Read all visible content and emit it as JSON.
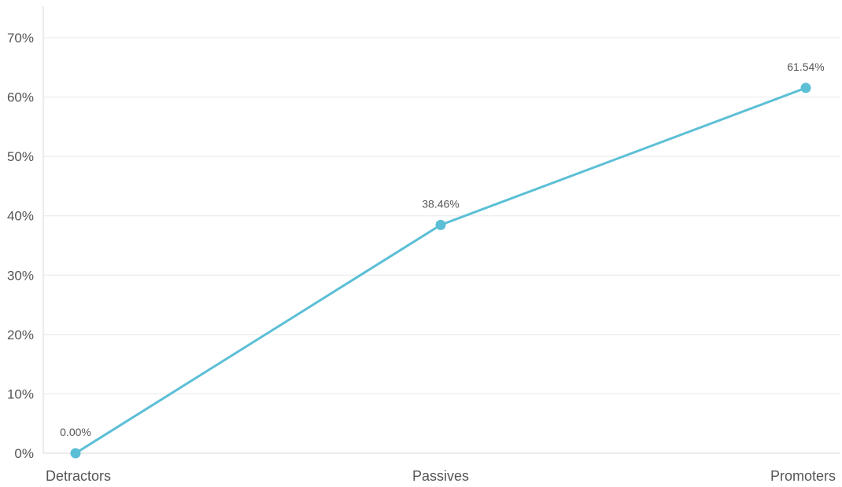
{
  "chart_data": {
    "type": "line",
    "title": "",
    "xlabel": "",
    "ylabel": "",
    "categories": [
      "Detractors",
      "Passives",
      "Promoters"
    ],
    "series": [
      {
        "values": [
          0.0,
          38.46,
          61.54
        ],
        "data_labels": [
          "0.00%",
          "38.46%",
          "61.54%"
        ],
        "color": "#5bbfd6"
      }
    ],
    "ylim": [
      0,
      70
    ],
    "y_ticks": [
      0,
      10,
      20,
      30,
      40,
      50,
      60,
      70
    ],
    "y_tick_labels": [
      "0%",
      "10%",
      "20%",
      "30%",
      "40%",
      "50%",
      "60%",
      "70%"
    ],
    "grid": true,
    "legend": "none"
  }
}
